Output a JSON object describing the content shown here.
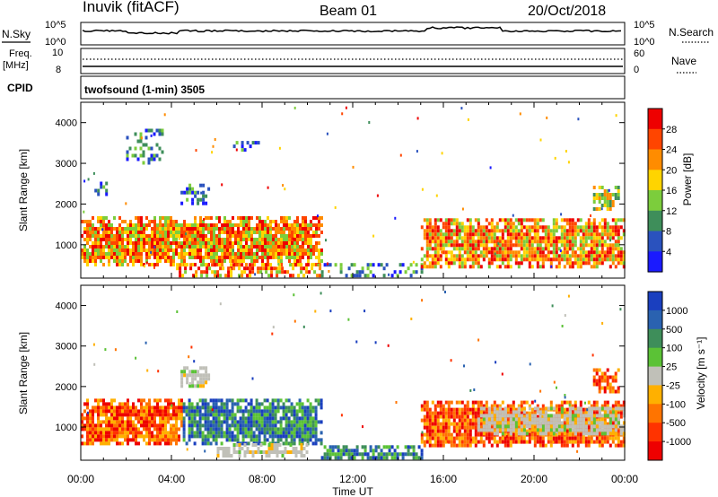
{
  "header": {
    "station": "Inuvik (fitACF)",
    "beam": "Beam 01",
    "date": "20/Oct/2018"
  },
  "strip_labels": {
    "nsky": "N.Sky",
    "nsky_ticks": [
      "10^5",
      "10^0"
    ],
    "nsearch": "N.Search",
    "nsearch_ticks": [
      "10^5",
      "10^0"
    ],
    "freq": "Freq.",
    "freq_unit": "[MHz]",
    "freq_ticks": [
      "10",
      "8"
    ],
    "nave": "Nave",
    "nave_ticks": [
      "60",
      "0"
    ],
    "cpid": "CPID",
    "mode": "twofsound (1-min) 3505"
  },
  "chart_data": [
    {
      "type": "heatmap",
      "name": "power-panel",
      "ylabel": "Slant Range [km]",
      "xlabel": "Time UT",
      "x_ticks": [
        "00:00",
        "04:00",
        "08:00",
        "12:00",
        "16:00",
        "20:00",
        "00:00"
      ],
      "y_ticks": [
        1000,
        2000,
        3000,
        4000
      ],
      "xlim_hours": [
        0,
        24
      ],
      "ylim_km": [
        180,
        4500
      ],
      "colorbar": {
        "label": "Power [dB]",
        "ticks": [
          "4",
          "8",
          "12",
          "16",
          "20",
          "24",
          "28"
        ],
        "colors": [
          "#1a1aff",
          "#2a52be",
          "#3e8e5a",
          "#7ccd3c",
          "#ffd400",
          "#ff8c00",
          "#ff4500",
          "#ee0000"
        ]
      },
      "echo_regions": [
        {
          "t0": 0.0,
          "t1": 10.6,
          "r0": 550,
          "r1": 1700,
          "level": "high"
        },
        {
          "t0": 4.2,
          "t1": 10.6,
          "r0": 250,
          "r1": 550,
          "level": "high"
        },
        {
          "t0": 10.6,
          "t1": 15.0,
          "r0": 200,
          "r1": 550,
          "level": "low"
        },
        {
          "t0": 15.0,
          "t1": 24.0,
          "r0": 500,
          "r1": 1650,
          "level": "high"
        },
        {
          "t0": 22.6,
          "t1": 23.7,
          "r0": 1900,
          "r1": 2450,
          "level": "mid"
        },
        {
          "t0": 0.6,
          "t1": 1.3,
          "r0": 2250,
          "r1": 2550,
          "level": "low"
        },
        {
          "t0": 2.0,
          "t1": 3.6,
          "r0": 3000,
          "r1": 3850,
          "level": "low"
        },
        {
          "t0": 4.4,
          "t1": 5.6,
          "r0": 2050,
          "r1": 2500,
          "level": "low"
        },
        {
          "t0": 6.6,
          "t1": 8.0,
          "r0": 3300,
          "r1": 3550,
          "level": "low"
        }
      ]
    },
    {
      "type": "heatmap",
      "name": "velocity-panel",
      "ylabel": "Slant Range [km]",
      "xlabel": "Time UT",
      "x_ticks": [
        "00:00",
        "04:00",
        "08:00",
        "12:00",
        "16:00",
        "20:00",
        "00:00"
      ],
      "y_ticks": [
        1000,
        2000,
        3000,
        4000
      ],
      "xlim_hours": [
        0,
        24
      ],
      "ylim_km": [
        180,
        4500
      ],
      "colorbar": {
        "label": "Velocity [m s⁻¹]",
        "ticks": [
          "1000",
          "500",
          "100",
          "25",
          "-25",
          "-100",
          "-500",
          "-1000"
        ],
        "colors": [
          "#1a3fbf",
          "#2a62b0",
          "#3e8e5a",
          "#5bc236",
          "#c0c0b8",
          "#ffb000",
          "#ff7400",
          "#ff3300",
          "#ee0000"
        ]
      },
      "echo_regions": [
        {
          "t0": 0.0,
          "t1": 4.5,
          "r0": 550,
          "r1": 1700,
          "level": "neg"
        },
        {
          "t0": 4.5,
          "t1": 10.6,
          "r0": 600,
          "r1": 1700,
          "level": "pos"
        },
        {
          "t0": 6.0,
          "t1": 10.0,
          "r0": 250,
          "r1": 600,
          "level": "zero"
        },
        {
          "t0": 10.6,
          "t1": 15.0,
          "r0": 200,
          "r1": 550,
          "level": "pos"
        },
        {
          "t0": 15.0,
          "t1": 24.0,
          "r0": 500,
          "r1": 1650,
          "level": "neg"
        },
        {
          "t0": 17.5,
          "t1": 24.0,
          "r0": 800,
          "r1": 1500,
          "level": "zero"
        },
        {
          "t0": 22.6,
          "t1": 23.7,
          "r0": 1900,
          "r1": 2450,
          "level": "neg"
        },
        {
          "t0": 4.4,
          "t1": 5.6,
          "r0": 2050,
          "r1": 2500,
          "level": "zero"
        }
      ]
    }
  ]
}
